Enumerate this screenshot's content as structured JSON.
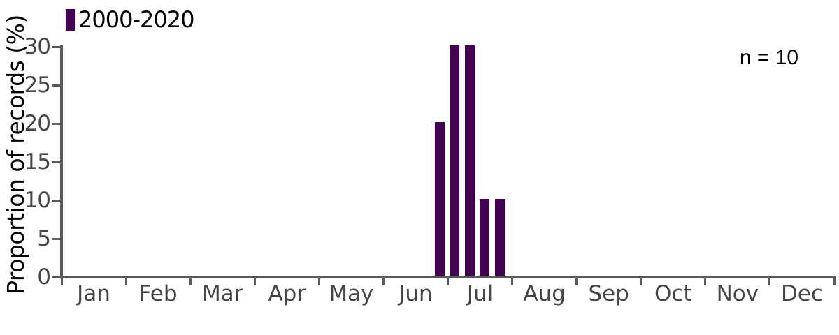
{
  "chart_data": {
    "type": "bar",
    "title": "",
    "xlabel": "",
    "ylabel": "Proportion of records (%)",
    "annotation": "n = 10",
    "legend": {
      "label": "2000-2020",
      "position": "top-left"
    },
    "grid": false,
    "ylim": [
      0,
      30
    ],
    "yticks": [
      0,
      5,
      10,
      15,
      20,
      25,
      30
    ],
    "x_categories": [
      "Jan",
      "Feb",
      "Mar",
      "Apr",
      "May",
      "Jun",
      "Jul",
      "Aug",
      "Sep",
      "Oct",
      "Nov",
      "Dec"
    ],
    "series": [
      {
        "name": "2000-2020",
        "note": "weekly bins, x_month = position in month units from Jan 1 (0) to Dec 31 (12)",
        "points": [
          {
            "x_month": 5.874,
            "value": 20
          },
          {
            "x_month": 6.108,
            "value": 30
          },
          {
            "x_month": 6.341,
            "value": 30
          },
          {
            "x_month": 6.575,
            "value": 10
          },
          {
            "x_month": 6.808,
            "value": 10
          }
        ]
      }
    ],
    "colors": {
      "bar": "#440154",
      "axis": "#595959",
      "tick_label": "#464646",
      "text": "#000000"
    }
  }
}
